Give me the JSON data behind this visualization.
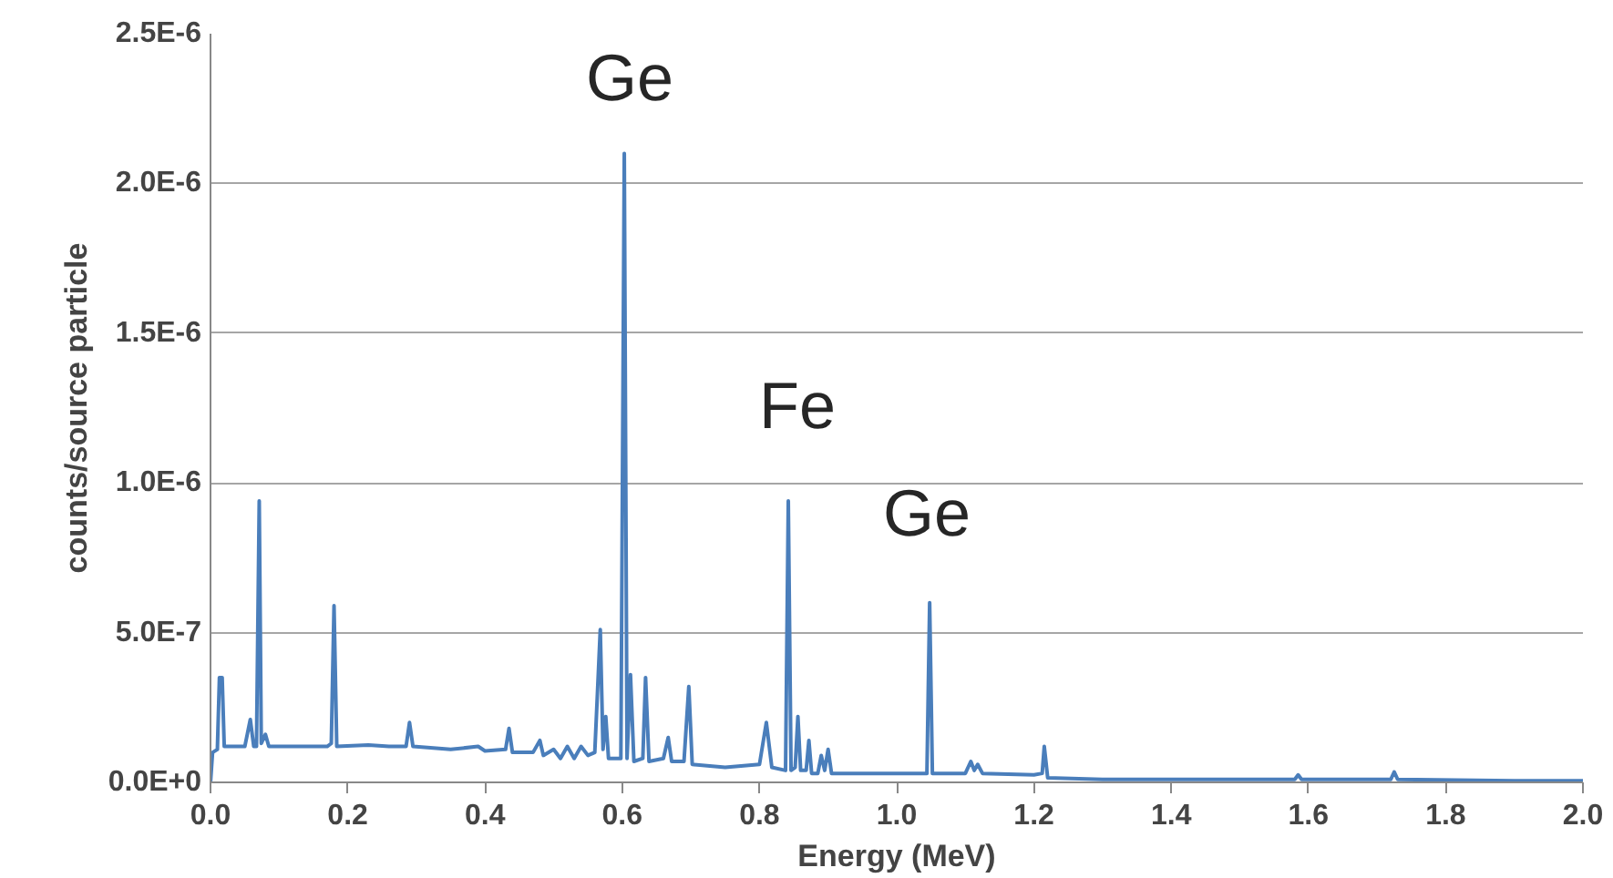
{
  "chart_data": {
    "type": "line",
    "xlabel": "Energy (MeV)",
    "ylabel": "counts/source particle",
    "xlim": [
      0,
      2.0
    ],
    "ylim": [
      0,
      2.5e-06
    ],
    "grid": "y",
    "marker": "none",
    "line_style": "solid",
    "xticks": [
      {
        "value": 0,
        "label": "0.0"
      },
      {
        "value": 0.2,
        "label": "0.2"
      },
      {
        "value": 0.4,
        "label": "0.4"
      },
      {
        "value": 0.6,
        "label": "0.6"
      },
      {
        "value": 0.8,
        "label": "0.8"
      },
      {
        "value": 1.0,
        "label": "1.0"
      },
      {
        "value": 1.2,
        "label": "1.2"
      },
      {
        "value": 1.4,
        "label": "1.4"
      },
      {
        "value": 1.6,
        "label": "1.6"
      },
      {
        "value": 1.8,
        "label": "1.8"
      },
      {
        "value": 2.0,
        "label": "2.0"
      }
    ],
    "yticks": [
      {
        "value": 0,
        "label": "0.0E+0"
      },
      {
        "value": 5e-07,
        "label": "5.0E-7"
      },
      {
        "value": 1e-06,
        "label": "1.0E-6"
      },
      {
        "value": 1.5e-06,
        "label": "1.5E-6"
      },
      {
        "value": 2e-06,
        "label": "2.0E-6"
      },
      {
        "value": 2.5e-06,
        "label": "2.5E-6"
      }
    ],
    "annotations": [
      "Ge",
      "Fe",
      "Ge"
    ],
    "series": [
      {
        "color": "#4a7ebb",
        "x": [
          0.0,
          0.003,
          0.01,
          0.013,
          0.017,
          0.02,
          0.05,
          0.058,
          0.063,
          0.067,
          0.071,
          0.074,
          0.08,
          0.085,
          0.12,
          0.17,
          0.176,
          0.18,
          0.184,
          0.23,
          0.26,
          0.285,
          0.29,
          0.295,
          0.35,
          0.39,
          0.4,
          0.43,
          0.435,
          0.44,
          0.47,
          0.48,
          0.485,
          0.5,
          0.51,
          0.52,
          0.53,
          0.54,
          0.55,
          0.56,
          0.568,
          0.572,
          0.576,
          0.58,
          0.598,
          0.603,
          0.607,
          0.612,
          0.617,
          0.63,
          0.634,
          0.639,
          0.66,
          0.667,
          0.672,
          0.69,
          0.697,
          0.702,
          0.75,
          0.8,
          0.81,
          0.818,
          0.838,
          0.842,
          0.846,
          0.852,
          0.856,
          0.86,
          0.868,
          0.872,
          0.876,
          0.885,
          0.89,
          0.895,
          0.9,
          0.905,
          0.95,
          1.0,
          1.044,
          1.048,
          1.052,
          1.1,
          1.108,
          1.113,
          1.118,
          1.125,
          1.2,
          1.212,
          1.215,
          1.22,
          1.3,
          1.4,
          1.5,
          1.58,
          1.585,
          1.59,
          1.72,
          1.725,
          1.73,
          1.9,
          2.0
        ],
        "values": [
          0.0,
          1e-07,
          1.1e-07,
          3.5e-07,
          3.5e-07,
          1.2e-07,
          1.2e-07,
          2.1e-07,
          1.2e-07,
          1.2e-07,
          9.4e-07,
          1.3e-07,
          1.6e-07,
          1.2e-07,
          1.2e-07,
          1.2e-07,
          1.3e-07,
          5.9e-07,
          1.2e-07,
          1.25e-07,
          1.2e-07,
          1.2e-07,
          2e-07,
          1.2e-07,
          1.1e-07,
          1.2e-07,
          1.05e-07,
          1.1e-07,
          1.8e-07,
          1e-07,
          1e-07,
          1.4e-07,
          9e-08,
          1.1e-07,
          8e-08,
          1.2e-07,
          8e-08,
          1.2e-07,
          9e-08,
          1e-07,
          5.1e-07,
          1.1e-07,
          2.2e-07,
          8e-08,
          8e-08,
          2.1e-06,
          8e-08,
          3.6e-07,
          7e-08,
          8e-08,
          3.5e-07,
          7e-08,
          8e-08,
          1.5e-07,
          7e-08,
          7e-08,
          3.2e-07,
          6e-08,
          5e-08,
          6e-08,
          2e-07,
          5e-08,
          4e-08,
          9.4e-07,
          4e-08,
          5e-08,
          2.2e-07,
          4e-08,
          4e-08,
          1.4e-07,
          3e-08,
          3e-08,
          9e-08,
          4e-08,
          1.1e-07,
          3e-08,
          3e-08,
          3e-08,
          3e-08,
          6e-07,
          3e-08,
          3e-08,
          7e-08,
          4e-08,
          6e-08,
          3e-08,
          2.5e-08,
          3e-08,
          1.2e-07,
          1.5e-08,
          1e-08,
          1e-08,
          1e-08,
          1e-08,
          2.5e-08,
          1e-08,
          1e-08,
          3.5e-08,
          1e-08,
          5e-09,
          5e-09
        ]
      }
    ]
  }
}
